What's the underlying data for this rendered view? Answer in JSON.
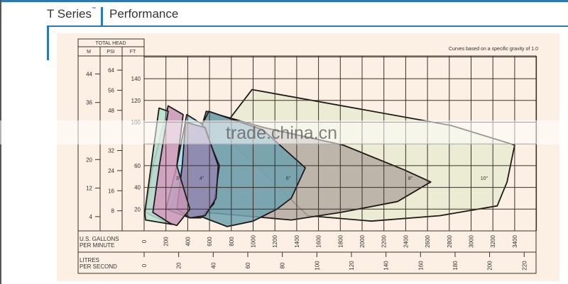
{
  "header": {
    "series": "T Series",
    "trademark": "™",
    "title": "Performance"
  },
  "watermark": "trade.china.cn",
  "chart_data": {
    "type": "area",
    "note": "Curves based on a specific gravity of 1.0",
    "head_header": "TOTAL HEAD",
    "y_units": [
      "M",
      "PSI",
      "FT"
    ],
    "y_ft": {
      "ticks": [
        20,
        40,
        60,
        100,
        120,
        140
      ],
      "range": [
        0,
        160
      ]
    },
    "y_psi": {
      "ticks": [
        8,
        16,
        24,
        32,
        48,
        56,
        64
      ]
    },
    "y_m": {
      "ticks": [
        4,
        12,
        20,
        36,
        44
      ]
    },
    "x_gpm": {
      "label": "U.S. GALLONS PER MINUTE",
      "ticks": [
        0,
        200,
        400,
        600,
        800,
        1000,
        1200,
        1400,
        1600,
        1800,
        2000,
        2200,
        2400,
        2600,
        2800,
        3000,
        3200,
        3400
      ],
      "range": [
        0,
        3600
      ]
    },
    "x_lps": {
      "label": "LITRES PER SECOND",
      "ticks": [
        0,
        20,
        40,
        60,
        80,
        100,
        120,
        140,
        160,
        180,
        200,
        220
      ]
    },
    "grid": true,
    "series": [
      {
        "name": "10\"",
        "color": "#e9ead0",
        "label_at": [
          3120,
          49
        ],
        "points": [
          [
            990,
            130
          ],
          [
            2815,
            97
          ],
          [
            3400,
            79
          ],
          [
            3330,
            45
          ],
          [
            3240,
            23
          ],
          [
            2715,
            14
          ],
          [
            2085,
            9
          ],
          [
            1500,
            14
          ],
          [
            700,
            92
          ]
        ]
      },
      {
        "name": "8\"",
        "color": "#b5aaa2",
        "label_at": [
          2443,
          49
        ],
        "points": [
          [
            570,
            110
          ],
          [
            1100,
            95
          ],
          [
            1825,
            79
          ],
          [
            2390,
            56
          ],
          [
            2630,
            45
          ],
          [
            2325,
            27
          ],
          [
            1805,
            17
          ],
          [
            1350,
            10
          ],
          [
            900,
            14
          ],
          [
            230,
            20
          ],
          [
            420,
            60
          ]
        ]
      },
      {
        "name": "6\"",
        "color": "#6fa2b0",
        "label_at": [
          1322,
          49
        ],
        "points": [
          [
            593,
            110
          ],
          [
            1088,
            93
          ],
          [
            1479,
            58
          ],
          [
            1350,
            30
          ],
          [
            1218,
            20
          ],
          [
            1000,
            9
          ],
          [
            762,
            4
          ],
          [
            500,
            14
          ],
          [
            250,
            20
          ],
          [
            350,
            60
          ]
        ]
      },
      {
        "name": "",
        "color": "#9ad9ee",
        "label_at": null,
        "points": [
          [
            391,
            107
          ],
          [
            534,
            98
          ],
          [
            690,
            60
          ],
          [
            640,
            25
          ],
          [
            520,
            12
          ],
          [
            420,
            12
          ],
          [
            200,
            20
          ],
          [
            300,
            60
          ]
        ]
      },
      {
        "name": "4\"",
        "color": "#8f7fa8",
        "label_at": [
          528,
          49
        ],
        "points": [
          [
            380,
            100
          ],
          [
            560,
            95
          ],
          [
            680,
            60
          ],
          [
            660,
            30
          ],
          [
            560,
            14
          ],
          [
            420,
            12
          ],
          [
            300,
            20
          ],
          [
            350,
            60
          ]
        ]
      },
      {
        "name": "3\"",
        "color": "#c896b8",
        "label_at": [
          313,
          49
        ],
        "points": [
          [
            221,
            115
          ],
          [
            358,
            107
          ],
          [
            300,
            60
          ],
          [
            420,
            20
          ],
          [
            300,
            5
          ],
          [
            200,
            8
          ],
          [
            13,
            17
          ],
          [
            80,
            60
          ]
        ]
      },
      {
        "name": "",
        "color": "#b6e2cf",
        "label_at": null,
        "points": [
          [
            137,
            113
          ],
          [
            221,
            110
          ],
          [
            140,
            60
          ],
          [
            80,
            17
          ],
          [
            254,
            6
          ],
          [
            13,
            10
          ],
          [
            6,
            17
          ]
        ]
      }
    ]
  }
}
